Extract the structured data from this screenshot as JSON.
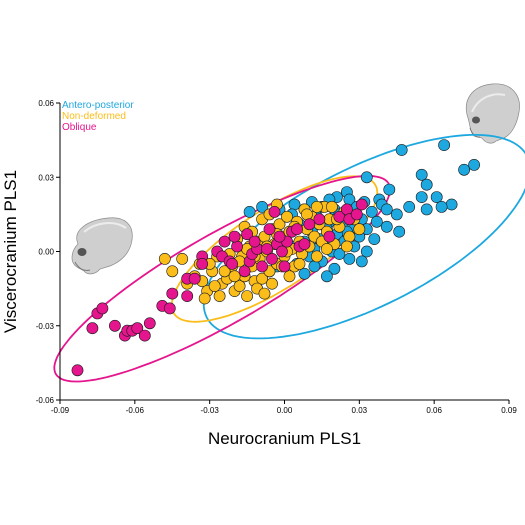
{
  "chart_data": {
    "type": "scatter",
    "xlabel": "Neurocranium PLS1",
    "ylabel": "Viscerocranium PLS1",
    "xlim": [
      -0.09,
      0.09
    ],
    "ylim": [
      -0.06,
      0.06
    ],
    "xticks": [
      "-0.09",
      "-0.06",
      "-0.03",
      "0.00",
      "0.03",
      "0.06",
      "0.09"
    ],
    "yticks": [
      "0.06",
      "0.03",
      "0.00",
      "-0.03",
      "-0.06"
    ],
    "legend_position": "top-left",
    "grid": false,
    "series": [
      {
        "name": "Antero-posterior",
        "color": "#1ea8e0",
        "points": [
          [
            0.064,
            0.043
          ],
          [
            0.047,
            0.041
          ],
          [
            0.076,
            0.035
          ],
          [
            0.072,
            0.033
          ],
          [
            0.055,
            0.031
          ],
          [
            0.033,
            0.03
          ],
          [
            0.057,
            0.027
          ],
          [
            0.042,
            0.025
          ],
          [
            0.025,
            0.024
          ],
          [
            0.021,
            0.022
          ],
          [
            0.061,
            0.022
          ],
          [
            0.055,
            0.022
          ],
          [
            0.018,
            0.021
          ],
          [
            0.026,
            0.021
          ],
          [
            0.038,
            0.021
          ],
          [
            0.011,
            0.02
          ],
          [
            0.032,
            0.02
          ],
          [
            0.004,
            0.019
          ],
          [
            0.039,
            0.019
          ],
          [
            0.067,
            0.019
          ],
          [
            -0.009,
            0.018
          ],
          [
            0.015,
            0.018
          ],
          [
            0.063,
            0.018
          ],
          [
            0.05,
            0.018
          ],
          [
            0.029,
            0.018
          ],
          [
            0.008,
            0.017
          ],
          [
            -0.002,
            0.017
          ],
          [
            0.02,
            0.017
          ],
          [
            0.041,
            0.017
          ],
          [
            0.057,
            0.017
          ],
          [
            0.035,
            0.016
          ],
          [
            -0.014,
            0.016
          ],
          [
            0.003,
            0.015
          ],
          [
            0.022,
            0.015
          ],
          [
            0.045,
            0.015
          ],
          [
            0.026,
            0.014
          ],
          [
            0.013,
            0.014
          ],
          [
            0.031,
            0.013
          ],
          [
            0.037,
            0.012
          ],
          [
            0.018,
            0.012
          ],
          [
            0.006,
            0.011
          ],
          [
            0.023,
            0.011
          ],
          [
            0.028,
            0.01
          ],
          [
            0.041,
            0.01
          ],
          [
            0.033,
            0.009
          ],
          [
            0.017,
            0.009
          ],
          [
            0.011,
            0.008
          ],
          [
            0.025,
            0.008
          ],
          [
            0.046,
            0.008
          ],
          [
            0.021,
            0.007
          ],
          [
            0.03,
            0.006
          ],
          [
            0.014,
            0.005
          ],
          [
            0.036,
            0.005
          ],
          [
            0.008,
            0.004
          ],
          [
            0.024,
            0.004
          ],
          [
            0.018,
            0.003
          ],
          [
            0.028,
            0.002
          ],
          [
            0.003,
            0.002
          ],
          [
            0.012,
            0.001
          ],
          [
            0.019,
            0.0
          ],
          [
            0.033,
            0.0
          ],
          [
            0.0,
            -0.001
          ],
          [
            0.022,
            -0.001
          ],
          [
            0.01,
            -0.002
          ],
          [
            0.026,
            -0.003
          ],
          [
            0.015,
            -0.004
          ],
          [
            0.005,
            -0.005
          ],
          [
            -0.003,
            -0.006
          ],
          [
            0.012,
            -0.006
          ],
          [
            0.02,
            -0.007
          ],
          [
            0.008,
            -0.009
          ],
          [
            -0.006,
            -0.008
          ],
          [
            0.031,
            -0.004
          ],
          [
            -0.01,
            -0.003
          ],
          [
            0.017,
            -0.01
          ]
        ]
      },
      {
        "name": "Non-deformed",
        "color": "#fbbd1a",
        "points": [
          [
            -0.048,
            -0.003
          ],
          [
            -0.041,
            -0.003
          ],
          [
            -0.034,
            -0.005
          ],
          [
            -0.033,
            -0.012
          ],
          [
            -0.031,
            -0.016
          ],
          [
            -0.036,
            -0.01
          ],
          [
            -0.029,
            -0.008
          ],
          [
            -0.027,
            -0.002
          ],
          [
            -0.025,
            -0.013
          ],
          [
            -0.023,
            -0.011
          ],
          [
            -0.021,
            -0.006
          ],
          [
            -0.02,
            -0.016
          ],
          [
            -0.018,
            -0.014
          ],
          [
            -0.017,
            -0.002
          ],
          [
            -0.016,
            -0.01
          ],
          [
            -0.015,
            -0.018
          ],
          [
            -0.014,
            0.002
          ],
          [
            -0.013,
            -0.006
          ],
          [
            -0.012,
            -0.012
          ],
          [
            -0.011,
            0.004
          ],
          [
            -0.01,
            -0.003
          ],
          [
            -0.009,
            -0.011
          ],
          [
            -0.008,
            0.006
          ],
          [
            -0.007,
            0.0
          ],
          [
            -0.006,
            -0.008
          ],
          [
            -0.005,
            0.009
          ],
          [
            -0.004,
            0.003
          ],
          [
            -0.003,
            -0.005
          ],
          [
            -0.002,
            0.011
          ],
          [
            -0.001,
            0.006
          ],
          [
            0.0,
            -0.002
          ],
          [
            0.001,
            0.014
          ],
          [
            0.002,
            0.008
          ],
          [
            0.003,
            0.001
          ],
          [
            0.004,
            -0.006
          ],
          [
            0.005,
            0.012
          ],
          [
            0.006,
            0.004
          ],
          [
            0.007,
            -0.001
          ],
          [
            0.008,
            0.017
          ],
          [
            0.009,
            0.009
          ],
          [
            0.01,
            0.002
          ],
          [
            0.011,
            0.014
          ],
          [
            0.012,
            0.006
          ],
          [
            0.013,
            -0.002
          ],
          [
            0.014,
            0.011
          ],
          [
            0.015,
            0.004
          ],
          [
            0.016,
            0.018
          ],
          [
            0.017,
            0.008
          ],
          [
            0.018,
            0.013
          ],
          [
            0.02,
            0.003
          ],
          [
            0.022,
            0.01
          ],
          [
            0.024,
            0.016
          ],
          [
            0.026,
            0.006
          ],
          [
            0.028,
            0.013
          ],
          [
            0.03,
            0.009
          ],
          [
            -0.026,
            -0.018
          ],
          [
            -0.03,
            -0.005
          ],
          [
            -0.019,
            0.005
          ],
          [
            -0.016,
            0.01
          ],
          [
            -0.013,
            0.008
          ],
          [
            -0.009,
            0.013
          ],
          [
            -0.006,
            0.015
          ],
          [
            -0.003,
            0.007
          ],
          [
            0.0,
            0.004
          ],
          [
            -0.018,
            -0.004
          ],
          [
            -0.022,
            -0.001
          ],
          [
            -0.011,
            -0.015
          ],
          [
            -0.005,
            -0.013
          ],
          [
            0.002,
            -0.01
          ],
          [
            -0.008,
            -0.017
          ],
          [
            -0.001,
            -0.006
          ],
          [
            0.006,
            -0.005
          ],
          [
            -0.015,
            0.001
          ],
          [
            -0.028,
            -0.014
          ],
          [
            -0.024,
            -0.008
          ],
          [
            -0.02,
            -0.01
          ],
          [
            0.004,
            0.01
          ],
          [
            0.009,
            0.015
          ],
          [
            0.013,
            0.018
          ],
          [
            -0.003,
            0.019
          ],
          [
            0.019,
            0.018
          ],
          [
            -0.045,
            -0.008
          ],
          [
            -0.039,
            -0.013
          ],
          [
            -0.032,
            -0.019
          ],
          [
            0.025,
            0.002
          ],
          [
            0.021,
            0.013
          ],
          [
            0.017,
            0.001
          ],
          [
            -0.007,
            0.002
          ],
          [
            -0.012,
            -0.002
          ],
          [
            0.001,
            0.0
          ]
        ]
      },
      {
        "name": "Oblique",
        "color": "#e5158e",
        "points": [
          [
            -0.083,
            -0.048
          ],
          [
            -0.077,
            -0.031
          ],
          [
            -0.075,
            -0.025
          ],
          [
            -0.073,
            -0.023
          ],
          [
            -0.068,
            -0.03
          ],
          [
            -0.064,
            -0.034
          ],
          [
            -0.063,
            -0.032
          ],
          [
            -0.061,
            -0.032
          ],
          [
            -0.059,
            -0.031
          ],
          [
            -0.056,
            -0.034
          ],
          [
            -0.054,
            -0.029
          ],
          [
            -0.049,
            -0.022
          ],
          [
            -0.046,
            -0.023
          ],
          [
            -0.045,
            -0.017
          ],
          [
            -0.039,
            -0.011
          ],
          [
            -0.039,
            -0.018
          ],
          [
            -0.036,
            -0.011
          ],
          [
            -0.033,
            -0.002
          ],
          [
            -0.033,
            -0.005
          ],
          [
            -0.027,
            0.0
          ],
          [
            -0.025,
            -0.002
          ],
          [
            -0.022,
            -0.004
          ],
          [
            -0.021,
            -0.005
          ],
          [
            -0.019,
            0.002
          ],
          [
            -0.016,
            -0.008
          ],
          [
            -0.014,
            -0.004
          ],
          [
            -0.013,
            -0.001
          ],
          [
            -0.011,
            0.001
          ],
          [
            -0.009,
            -0.006
          ],
          [
            -0.007,
            0.001
          ],
          [
            -0.005,
            -0.003
          ],
          [
            -0.003,
            0.003
          ],
          [
            -0.001,
            0.0
          ],
          [
            0.0,
            -0.006
          ],
          [
            0.001,
            0.004
          ],
          [
            0.003,
            0.008
          ],
          [
            0.005,
            0.009
          ],
          [
            0.006,
            0.002
          ],
          [
            0.008,
            0.003
          ],
          [
            0.01,
            0.011
          ],
          [
            -0.002,
            0.006
          ],
          [
            -0.004,
            0.016
          ],
          [
            -0.024,
            0.004
          ],
          [
            -0.02,
            0.006
          ],
          [
            0.014,
            0.013
          ],
          [
            0.018,
            0.006
          ],
          [
            0.022,
            0.014
          ],
          [
            0.025,
            0.017
          ],
          [
            0.026,
            0.013
          ],
          [
            0.029,
            0.015
          ],
          [
            0.031,
            0.019
          ],
          [
            -0.015,
            0.007
          ],
          [
            -0.012,
            0.004
          ],
          [
            -0.006,
            0.009
          ]
        ]
      }
    ],
    "ellipses": [
      {
        "series": "Antero-posterior",
        "color": "#1ea8e0",
        "center": [
          0.033,
          0.006
        ],
        "semi_major": 0.072,
        "semi_minor": 0.028,
        "angle_deg": 27
      },
      {
        "series": "Non-deformed",
        "color": "#fbbd1a",
        "center": [
          -0.004,
          0.001
        ],
        "semi_major": 0.048,
        "semi_minor": 0.016,
        "angle_deg": 33
      },
      {
        "series": "Oblique",
        "color": "#e5158e",
        "center": [
          -0.025,
          -0.011
        ],
        "semi_major": 0.077,
        "semi_minor": 0.018,
        "angle_deg": 30
      }
    ]
  }
}
